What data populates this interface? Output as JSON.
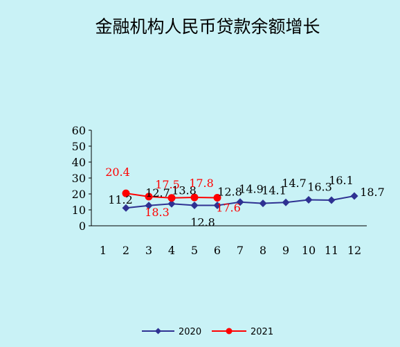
{
  "chart_data": {
    "type": "line",
    "title": "金融机构人民币贷款余额增长",
    "xlabel": "",
    "ylabel": "",
    "ylim": [
      0,
      60
    ],
    "yticks": [
      "0",
      "10",
      "20",
      "30",
      "40",
      "50",
      "60"
    ],
    "categories": [
      "1",
      "2",
      "3",
      "4",
      "5",
      "6",
      "7",
      "8",
      "9",
      "10",
      "11",
      "12"
    ],
    "grid": false,
    "legend_position": "bottom",
    "series": [
      {
        "name": "2020",
        "color": "#2e3192",
        "marker": "diamond",
        "values": [
          null,
          11.2,
          12.7,
          13.8,
          12.8,
          12.8,
          14.9,
          14.1,
          14.7,
          16.3,
          16.1,
          18.7
        ],
        "labels": [
          null,
          "11.2",
          "12.7",
          "13.8",
          "12.8",
          "12.8",
          "14.9",
          "14.1",
          "14.7",
          "16.3",
          "16.1",
          "18.7"
        ]
      },
      {
        "name": "2021",
        "color": "#ff0000",
        "marker": "circle",
        "values": [
          null,
          20.4,
          18.3,
          17.5,
          17.8,
          17.6,
          null,
          null,
          null,
          null,
          null,
          null
        ],
        "labels": [
          null,
          "20.4",
          "18.3",
          "17.5",
          "17.8",
          "17.6",
          null,
          null,
          null,
          null,
          null,
          null
        ]
      }
    ]
  }
}
